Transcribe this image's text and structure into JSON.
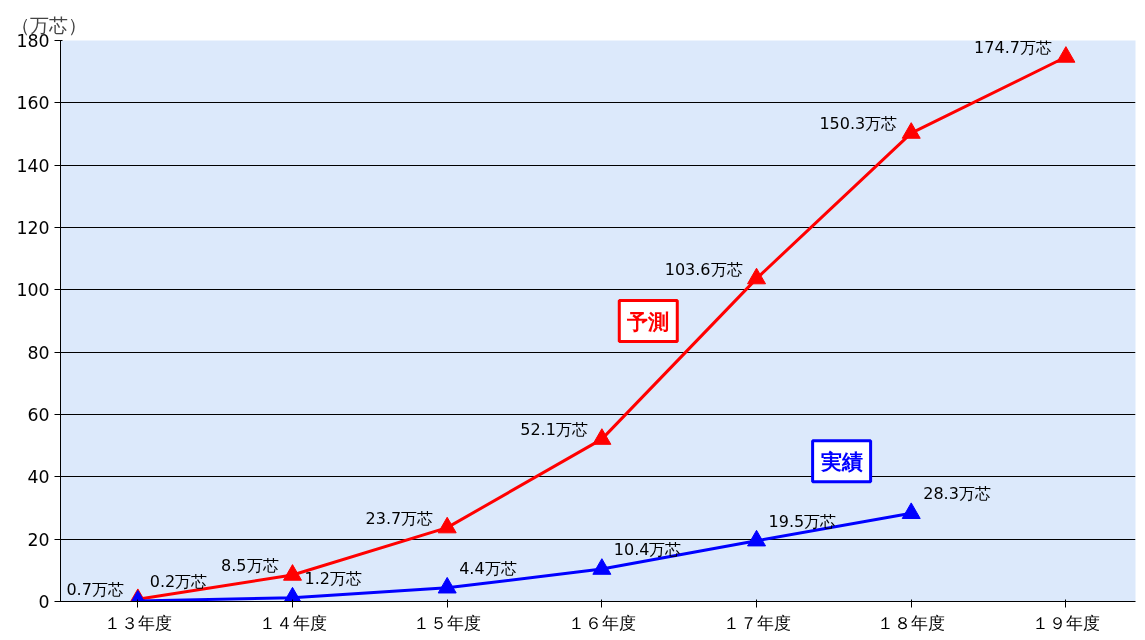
{
  "chart_data": {
    "type": "line",
    "ylabel": "（万芯）",
    "categories": [
      "１３年度",
      "１４年度",
      "１５年度",
      "１６年度",
      "１７年度",
      "１８年度",
      "１９年度"
    ],
    "series": [
      {
        "name": "予測",
        "color": "#ff0000",
        "values": [
          0.7,
          8.5,
          23.7,
          52.1,
          103.6,
          150.3,
          174.7
        ],
        "value_labels": [
          "0.7万芯",
          "8.5万芯",
          "23.7万芯",
          "52.1万芯",
          "103.6万芯",
          "150.3万芯",
          "174.7万芯"
        ]
      },
      {
        "name": "実績",
        "color": "#0000ff",
        "values": [
          0.2,
          1.2,
          4.4,
          10.4,
          19.5,
          28.3,
          null
        ],
        "value_labels": [
          "0.2万芯",
          "1.2万芯",
          "4.4万芯",
          "10.4万芯",
          "19.5万芯",
          "28.3万芯",
          null
        ]
      }
    ],
    "ylim": [
      0,
      180
    ],
    "yticks": [
      0,
      20,
      40,
      60,
      80,
      100,
      120,
      140,
      160,
      180
    ],
    "grid": "y",
    "legend": false,
    "marker": "triangle",
    "line_style": "solid"
  }
}
